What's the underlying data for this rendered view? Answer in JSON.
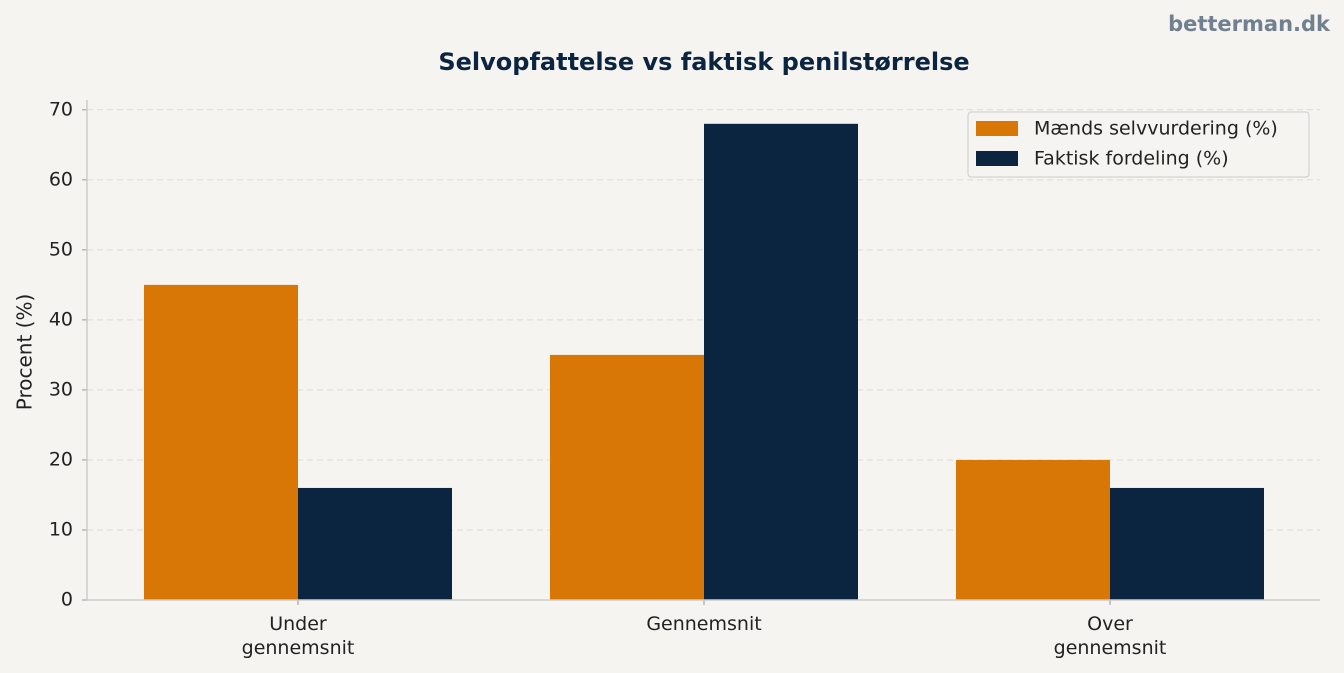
{
  "watermark": "betterman.dk",
  "chart_data": {
    "type": "bar",
    "title": "Selvopfattelse vs faktisk penilstørrelse",
    "ylabel": "Procent (%)",
    "categories": [
      "Under\ngennemsnit",
      "Gennemsnit",
      "Over\ngennemsnit"
    ],
    "series": [
      {
        "name": "Mænds selvvurdering (%)",
        "color": "#d97706",
        "values": [
          45,
          35,
          20
        ]
      },
      {
        "name": "Faktisk fordeling (%)",
        "color": "#0b2540",
        "values": [
          16,
          68,
          16
        ]
      }
    ],
    "ylim": [
      0,
      71.4
    ],
    "yticks": [
      0,
      10,
      20,
      30,
      40,
      50,
      60,
      70
    ],
    "grid": true,
    "legend": "upper right"
  }
}
